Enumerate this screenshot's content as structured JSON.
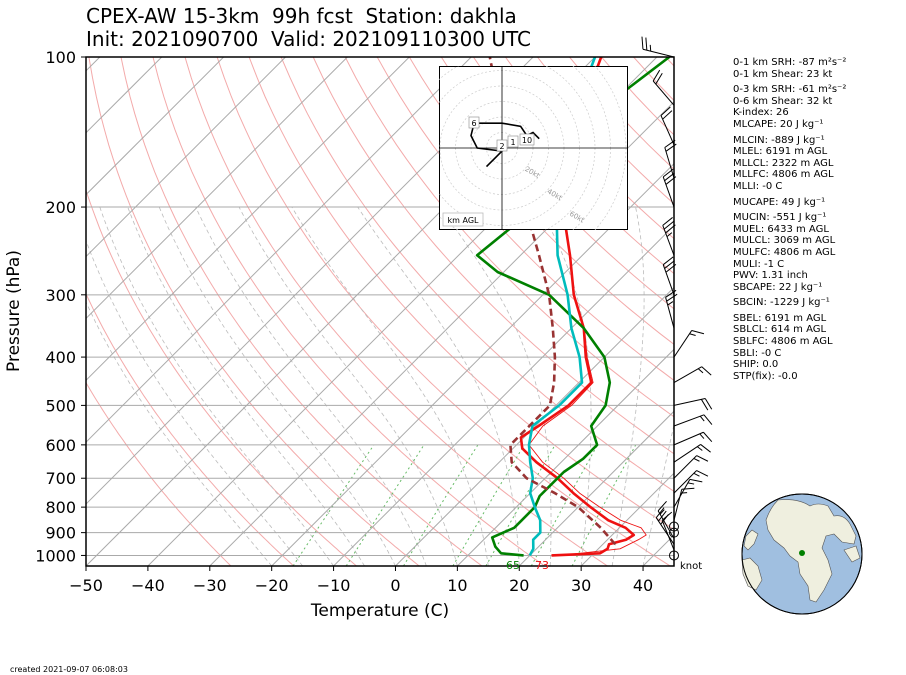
{
  "header": {
    "line1": "CPEX-AW 15-3km  99h fcst  Station: dakhla",
    "line2": "Init: 2021090700  Valid: 202109110300 UTC"
  },
  "footer": {
    "created": "created 2021-09-07 06:08:03"
  },
  "chart_data": {
    "type": "line",
    "subtype": "skew-t log-p",
    "xlabel": "Temperature (C)",
    "ylabel": "Pressure (hPa)",
    "xlim": [
      -50,
      45
    ],
    "ylim_pressure": [
      1050,
      100
    ],
    "x_ticks": [
      -50,
      -40,
      -30,
      -20,
      -10,
      0,
      10,
      20,
      30,
      40
    ],
    "p_ticks": [
      100,
      200,
      300,
      400,
      500,
      600,
      700,
      800,
      900,
      1000
    ],
    "grid": true,
    "wind_unit_label": "knot",
    "surface_labels": {
      "dewpoint": "65",
      "temperature": "73"
    },
    "series": [
      {
        "key": "temperature",
        "color": "#ee1111",
        "points": [
          [
            1000,
            23.5
          ],
          [
            990,
            31
          ],
          [
            970,
            31.5
          ],
          [
            950,
            31
          ],
          [
            930,
            33
          ],
          [
            910,
            33.5
          ],
          [
            880,
            31
          ],
          [
            850,
            27
          ],
          [
            800,
            22
          ],
          [
            750,
            17
          ],
          [
            700,
            12
          ],
          [
            650,
            6
          ],
          [
            610,
            1.5
          ],
          [
            580,
            -0.5
          ],
          [
            550,
            0.5
          ],
          [
            500,
            2
          ],
          [
            450,
            2
          ],
          [
            400,
            -3
          ],
          [
            350,
            -8
          ],
          [
            300,
            -15
          ],
          [
            250,
            -22
          ],
          [
            200,
            -31
          ],
          [
            170,
            -36
          ],
          [
            150,
            -40
          ],
          [
            120,
            -45
          ],
          [
            100,
            -49
          ]
        ]
      },
      {
        "key": "virtual_temperature",
        "color": "#ee1111",
        "thin": true,
        "points": [
          [
            1000,
            25
          ],
          [
            970,
            33.5
          ],
          [
            930,
            35
          ],
          [
            910,
            35.5
          ],
          [
            880,
            33.5
          ],
          [
            850,
            29
          ],
          [
            800,
            23.5
          ],
          [
            750,
            18
          ],
          [
            700,
            13
          ],
          [
            650,
            7
          ],
          [
            600,
            2
          ],
          [
            550,
            1.2
          ],
          [
            500,
            2.5
          ],
          [
            450,
            2.3
          ],
          [
            400,
            -2.8
          ],
          [
            350,
            -7.9
          ],
          [
            300,
            -14.9
          ]
        ]
      },
      {
        "key": "dewpoint",
        "color": "#008000",
        "points": [
          [
            1000,
            19
          ],
          [
            990,
            15
          ],
          [
            960,
            13
          ],
          [
            920,
            11
          ],
          [
            880,
            13
          ],
          [
            850,
            13
          ],
          [
            800,
            13
          ],
          [
            760,
            12
          ],
          [
            720,
            12
          ],
          [
            680,
            12
          ],
          [
            640,
            13
          ],
          [
            600,
            13
          ],
          [
            550,
            9
          ],
          [
            500,
            8
          ],
          [
            450,
            5
          ],
          [
            400,
            0
          ],
          [
            350,
            -8
          ],
          [
            300,
            -19
          ],
          [
            270,
            -31
          ],
          [
            250,
            -37
          ],
          [
            220,
            -36
          ],
          [
            200,
            -34
          ],
          [
            180,
            -37
          ],
          [
            160,
            -37
          ],
          [
            140,
            -38
          ],
          [
            120,
            -40
          ],
          [
            100,
            -38
          ]
        ]
      },
      {
        "key": "wetbulb",
        "color": "#00bcbc",
        "points": [
          [
            1000,
            20
          ],
          [
            970,
            19.5
          ],
          [
            930,
            18
          ],
          [
            900,
            18
          ],
          [
            850,
            16
          ],
          [
            800,
            13
          ],
          [
            750,
            10
          ],
          [
            700,
            8
          ],
          [
            650,
            5
          ],
          [
            600,
            2
          ],
          [
            550,
            -0.5
          ],
          [
            500,
            0.5
          ],
          [
            450,
            0.5
          ],
          [
            400,
            -4
          ],
          [
            350,
            -10
          ],
          [
            300,
            -16
          ],
          [
            250,
            -24
          ],
          [
            200,
            -32
          ],
          [
            150,
            -41
          ],
          [
            120,
            -46
          ],
          [
            100,
            -50
          ]
        ]
      },
      {
        "key": "parcel",
        "color": "#993333",
        "dashed": true,
        "points": [
          [
            950,
            32
          ],
          [
            880,
            27
          ],
          [
            800,
            20
          ],
          [
            750,
            14
          ],
          [
            700,
            7
          ],
          [
            650,
            2
          ],
          [
            600,
            -1
          ],
          [
            550,
            -1
          ],
          [
            500,
            -1
          ],
          [
            450,
            -4
          ],
          [
            400,
            -8
          ],
          [
            350,
            -13
          ],
          [
            300,
            -19
          ],
          [
            250,
            -27
          ],
          [
            200,
            -37
          ],
          [
            150,
            -50
          ],
          [
            100,
            -67
          ]
        ]
      }
    ],
    "wind_barbs": [
      {
        "p": 1000,
        "u": 0,
        "v": 0
      },
      {
        "p": 975,
        "u": -2,
        "v": 5
      },
      {
        "p": 950,
        "u": -8,
        "v": 12
      },
      {
        "p": 925,
        "u": -4,
        "v": 7
      },
      {
        "p": 900,
        "u": 0,
        "v": 0
      },
      {
        "p": 875,
        "u": 0,
        "v": 0
      },
      {
        "p": 850,
        "u": 2,
        "v": 8
      },
      {
        "p": 800,
        "u": 4,
        "v": 7
      },
      {
        "p": 750,
        "u": 6,
        "v": 6
      },
      {
        "p": 700,
        "u": 5,
        "v": 5
      },
      {
        "p": 650,
        "u": 6,
        "v": 4
      },
      {
        "p": 600,
        "u": 7,
        "v": 3
      },
      {
        "p": 550,
        "u": 8,
        "v": 3
      },
      {
        "p": 500,
        "u": 9,
        "v": 2
      },
      {
        "p": 450,
        "u": 7,
        "v": 4
      },
      {
        "p": 400,
        "u": 4,
        "v": 6
      },
      {
        "p": 350,
        "u": -3,
        "v": 11
      },
      {
        "p": 300,
        "u": -5,
        "v": 14
      },
      {
        "p": 250,
        "u": -6,
        "v": 16
      },
      {
        "p": 200,
        "u": -5,
        "v": 14
      },
      {
        "p": 175,
        "u": -3,
        "v": 10
      },
      {
        "p": 150,
        "u": -4,
        "v": 9
      },
      {
        "p": 125,
        "u": -6,
        "v": 7
      },
      {
        "p": 100,
        "u": -12,
        "v": 3
      }
    ],
    "hodograph": {
      "label": "km AGL",
      "rings_kt": [
        10,
        20,
        30,
        40,
        50,
        60,
        70,
        80
      ],
      "ring_labels": [
        "20kt",
        "40kt",
        "60kt",
        "80kt"
      ],
      "height_labels": [
        "6",
        "2",
        "1",
        "10"
      ],
      "path": [
        [
          -5,
          -6
        ],
        [
          -2,
          -3
        ],
        [
          0,
          -1
        ],
        [
          -8,
          0
        ],
        [
          -10,
          4
        ],
        [
          -9,
          8
        ],
        [
          0,
          8
        ],
        [
          6,
          7
        ],
        [
          8,
          4
        ],
        [
          10,
          5
        ],
        [
          12,
          3
        ]
      ]
    },
    "globe": {
      "station_color": "#008000",
      "ocean_color": "#a0bfe0",
      "land_color": "#efefdf"
    }
  },
  "stats": [
    {
      "text": "0-1 km SRH: -87 m²s⁻²",
      "gap": false
    },
    {
      "text": "0-1 km Shear: 23 kt",
      "gap": false
    },
    {
      "text": "0-3 km SRH: -61 m²s⁻²",
      "gap": true
    },
    {
      "text": "0-6 km Shear: 32 kt",
      "gap": false
    },
    {
      "text": "K-index: 26",
      "gap": false
    },
    {
      "text": "MLCAPE: 20 J kg⁻¹",
      "gap": false
    },
    {
      "text": "MLCIN: -889 J kg⁻¹",
      "gap": true
    },
    {
      "text": "MLEL: 6191 m AGL",
      "gap": false
    },
    {
      "text": "MLLCL: 2322 m AGL",
      "gap": false
    },
    {
      "text": "MLLFC: 4806 m AGL",
      "gap": false
    },
    {
      "text": "MLLI: -0 C",
      "gap": false
    },
    {
      "text": "MUCAPE: 49 J kg⁻¹",
      "gap": true
    },
    {
      "text": "MUCIN: -551 J kg⁻¹",
      "gap": true
    },
    {
      "text": "MUEL: 6433 m AGL",
      "gap": false
    },
    {
      "text": "MULCL: 3069 m AGL",
      "gap": false
    },
    {
      "text": "MULFC: 4806 m AGL",
      "gap": false
    },
    {
      "text": "MULI: -1 C",
      "gap": false
    },
    {
      "text": "PWV: 1.31 inch",
      "gap": false
    },
    {
      "text": "SBCAPE: 22 J kg⁻¹",
      "gap": false
    },
    {
      "text": "SBCIN: -1229 J kg⁻¹",
      "gap": true
    },
    {
      "text": "SBEL: 6191 m AGL",
      "gap": true
    },
    {
      "text": "SBLCL: 614 m AGL",
      "gap": false
    },
    {
      "text": "SBLFC: 4806 m AGL",
      "gap": false
    },
    {
      "text": "SBLI: -0 C",
      "gap": false
    },
    {
      "text": "SHIP: 0.0",
      "gap": false
    },
    {
      "text": "STP(fix): -0.0",
      "gap": false
    }
  ]
}
